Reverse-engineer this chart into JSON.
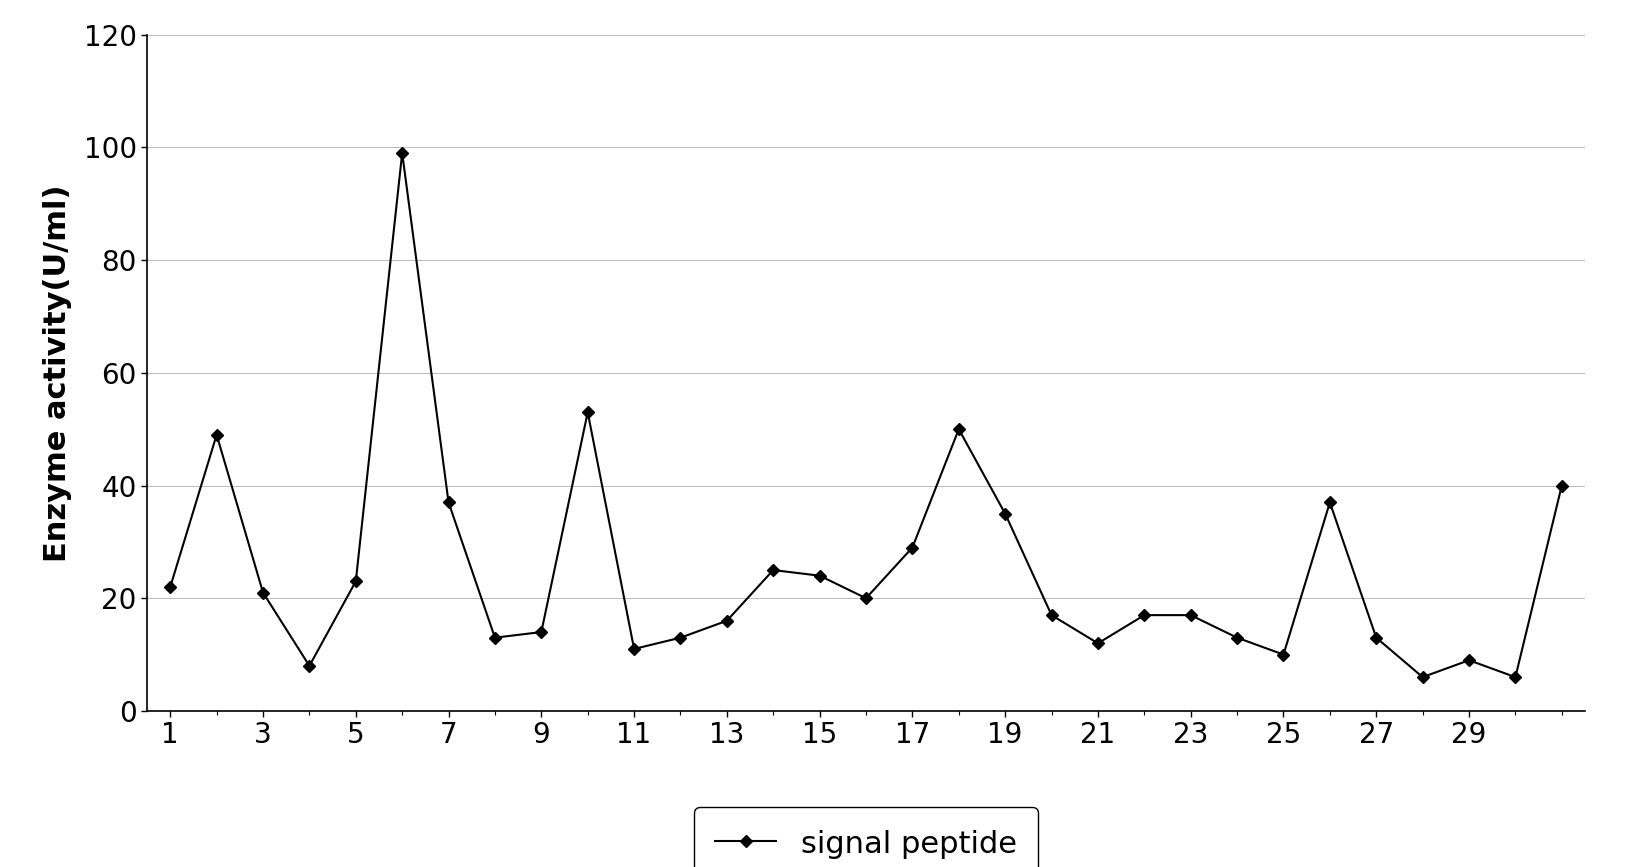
{
  "x": [
    1,
    2,
    3,
    4,
    5,
    6,
    7,
    8,
    9,
    10,
    11,
    12,
    13,
    14,
    15,
    16,
    17,
    18,
    19,
    20,
    21,
    22,
    23,
    24,
    25,
    26,
    27,
    28,
    29,
    30,
    31
  ],
  "y": [
    22,
    49,
    21,
    8,
    23,
    99,
    37,
    13,
    14,
    53,
    11,
    13,
    16,
    25,
    24,
    20,
    29,
    50,
    35,
    17,
    12,
    17,
    17,
    13,
    10,
    37,
    13,
    6,
    9,
    6,
    40
  ],
  "ylabel": "Enzyme activity(U/ml)",
  "ylim": [
    0,
    120
  ],
  "yticks": [
    0,
    20,
    40,
    60,
    80,
    100,
    120
  ],
  "xlim": [
    0.5,
    31.5
  ],
  "xtick_positions": [
    1,
    3,
    5,
    7,
    9,
    11,
    13,
    15,
    17,
    19,
    21,
    23,
    25,
    27,
    29
  ],
  "xtick_labels": [
    "1",
    "3",
    "5",
    "7",
    "9",
    "11",
    "13",
    "15",
    "17",
    "19",
    "21",
    "23",
    "25",
    "27",
    "29"
  ],
  "line_color": "#000000",
  "marker": "D",
  "marker_size": 6,
  "line_width": 1.5,
  "background_color": "#ffffff",
  "legend_label": "signal peptide",
  "grid_color": "#bbbbbb",
  "grid_linewidth": 0.7,
  "ylabel_fontsize": 22,
  "tick_fontsize": 20,
  "legend_fontsize": 22
}
